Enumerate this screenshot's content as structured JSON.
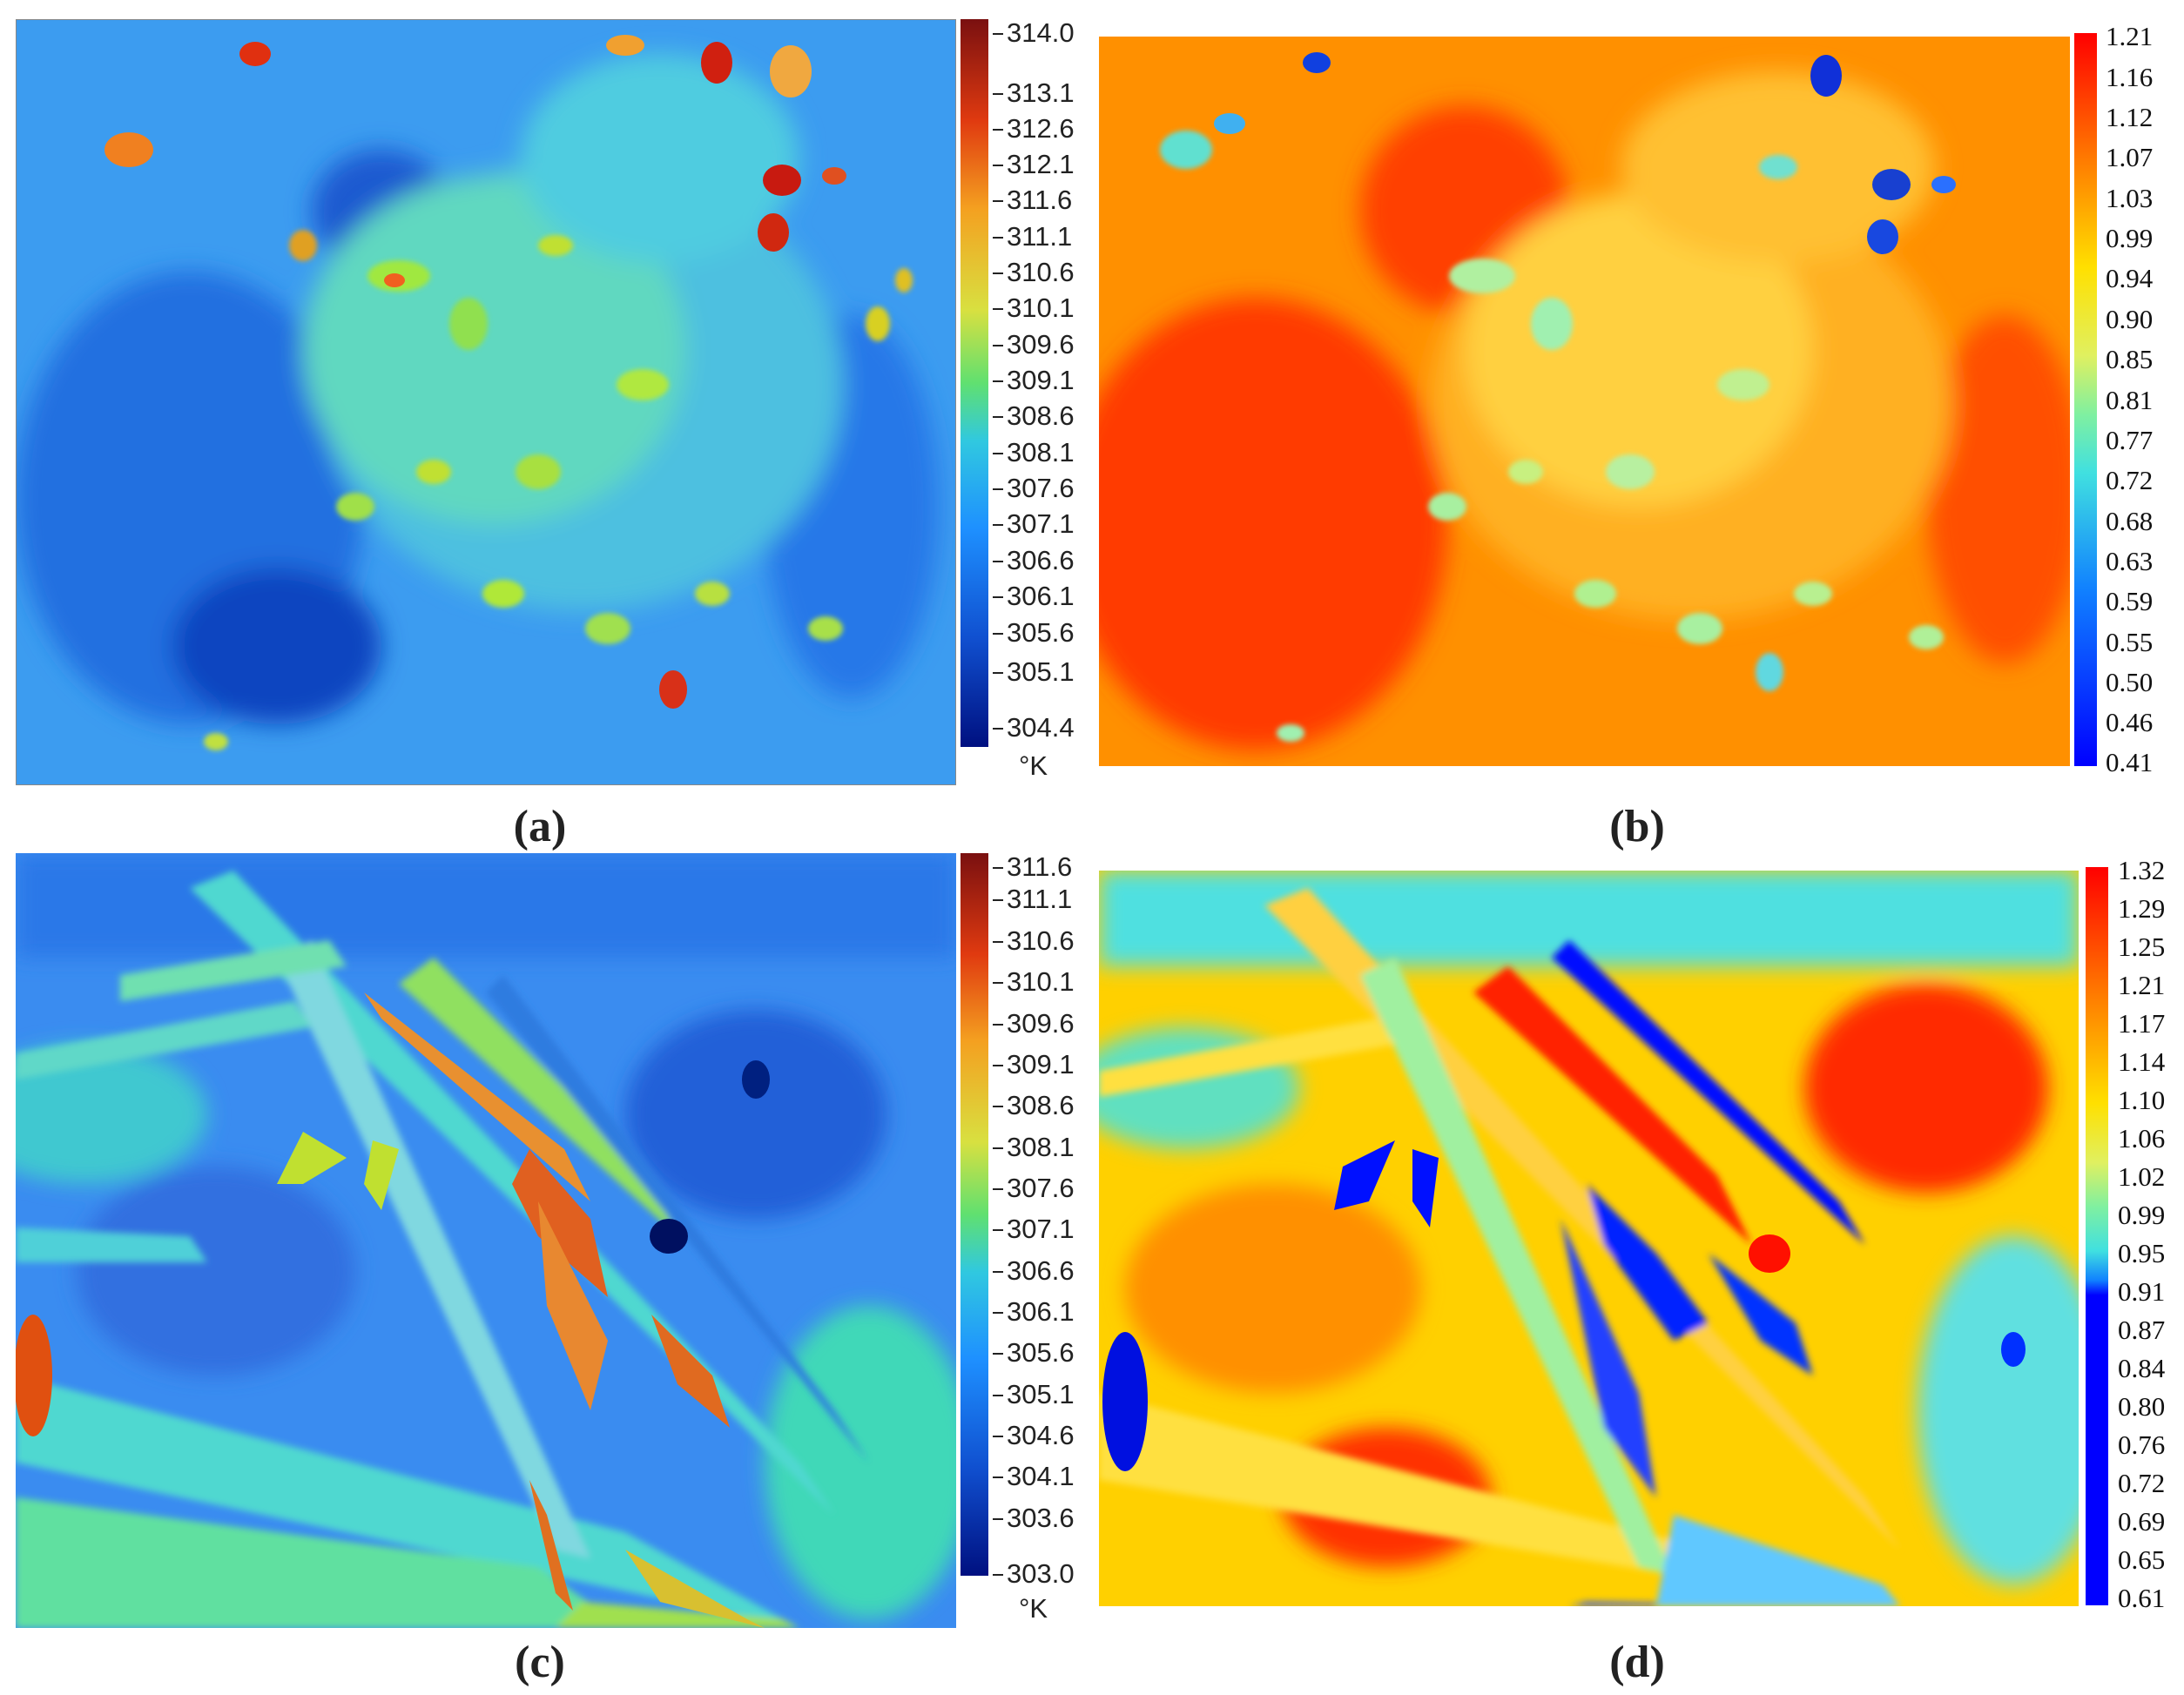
{
  "panels": {
    "a": {
      "caption": "(a)",
      "scale_ticks": [
        "314.0",
        "313.1",
        "312.6",
        "312.1",
        "311.6",
        "311.1",
        "310.6",
        "310.1",
        "309.6",
        "309.1",
        "308.6",
        "308.1",
        "307.6",
        "307.1",
        "306.6",
        "306.1",
        "305.6",
        "305.1",
        "304.4"
      ],
      "unit": "°K",
      "palette": "jet-dark",
      "colors": [
        "#7a1010",
        "#e03a10",
        "#f4a020",
        "#a8e030",
        "#30e0b0",
        "#1e90ff",
        "#1050d0",
        "#001080"
      ]
    },
    "b": {
      "caption": "(b)",
      "scale_ticks": [
        "1.21",
        "1.16",
        "1.12",
        "1.07",
        "1.03",
        "0.99",
        "0.94",
        "0.90",
        "0.85",
        "0.81",
        "0.77",
        "0.72",
        "0.68",
        "0.63",
        "0.59",
        "0.55",
        "0.50",
        "0.46",
        "0.41"
      ],
      "palette": "jet-bright",
      "colors": [
        "#ff0000",
        "#ff8000",
        "#ffe000",
        "#c0f060",
        "#40e0e0",
        "#1060ff",
        "#0000ff"
      ]
    },
    "c": {
      "caption": "(c)",
      "scale_ticks": [
        "311.6",
        "311.1",
        "310.6",
        "310.1",
        "309.6",
        "309.1",
        "308.6",
        "308.1",
        "307.6",
        "307.1",
        "306.6",
        "306.1",
        "305.6",
        "305.1",
        "304.6",
        "304.1",
        "303.6",
        "303.0"
      ],
      "unit": "°K",
      "palette": "jet-dark"
    },
    "d": {
      "caption": "(d)",
      "scale_ticks": [
        "1.32",
        "1.29",
        "1.25",
        "1.21",
        "1.17",
        "1.14",
        "1.10",
        "1.06",
        "1.02",
        "0.99",
        "0.95",
        "0.91",
        "0.87",
        "0.84",
        "0.80",
        "0.76",
        "0.72",
        "0.69",
        "0.65",
        "0.61"
      ],
      "palette": "jet-bright"
    }
  }
}
